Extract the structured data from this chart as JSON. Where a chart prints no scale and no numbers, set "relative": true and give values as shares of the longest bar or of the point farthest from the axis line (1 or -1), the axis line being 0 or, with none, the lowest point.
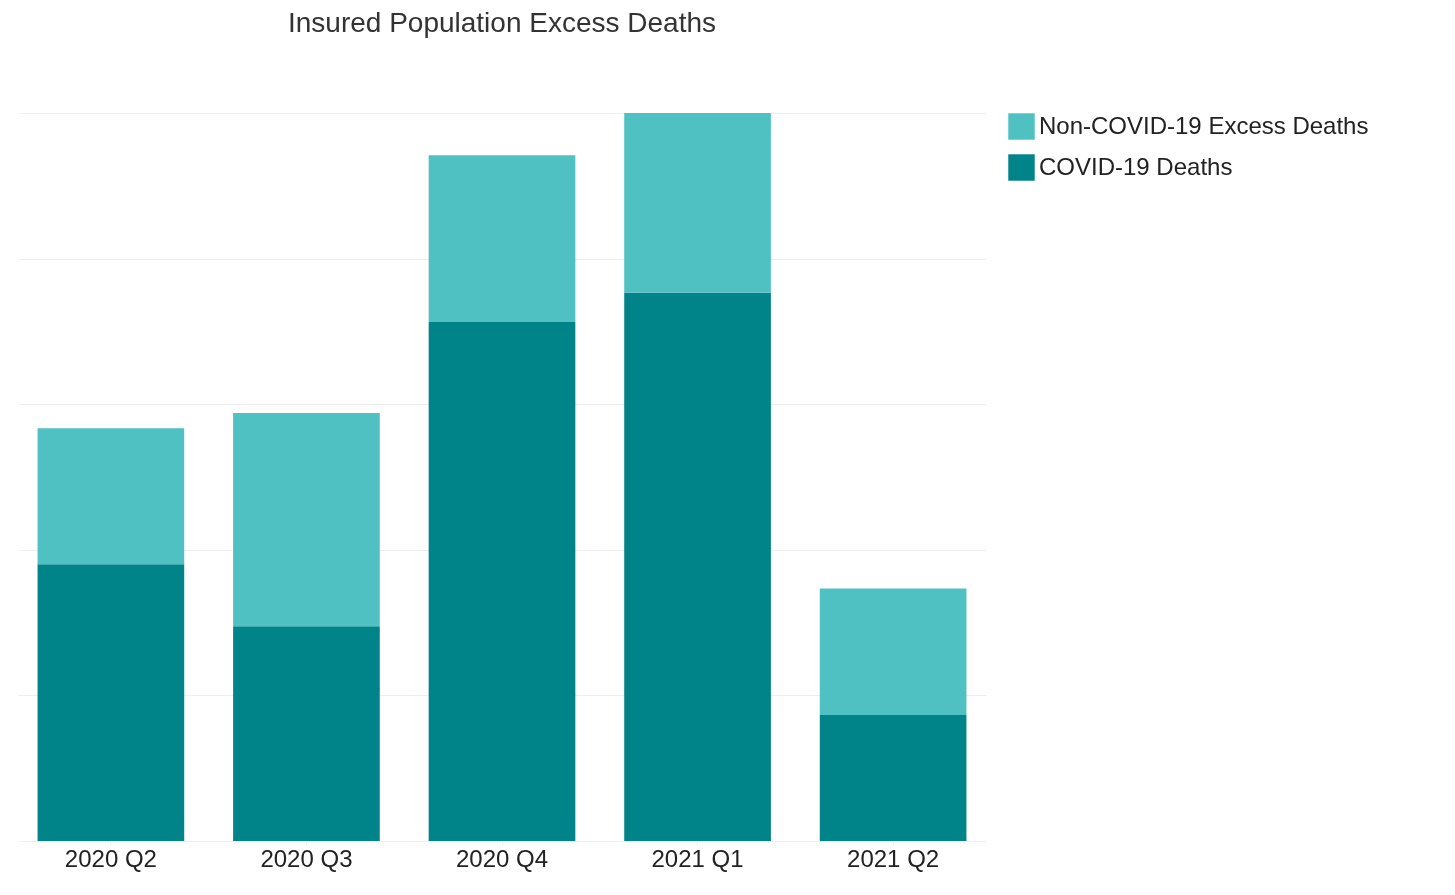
{
  "chart_data": {
    "type": "bar",
    "title": "Insured Population Excess Deaths",
    "categories": [
      "2020 Q2",
      "2020 Q3",
      "2020 Q4",
      "2021 Q1",
      "2021 Q2"
    ],
    "stacked": true,
    "relative": true,
    "grid": "y",
    "legend": "top right",
    "series": [
      {
        "name": "COVID-19 Deaths",
        "color": "#008489",
        "values": [
          0.38,
          0.295,
          0.713,
          0.753,
          0.173
        ]
      },
      {
        "name": "Non-COVID-19 Excess Deaths",
        "color": "#50c1c3",
        "values": [
          0.187,
          0.293,
          0.229,
          0.247,
          0.174
        ]
      }
    ]
  }
}
